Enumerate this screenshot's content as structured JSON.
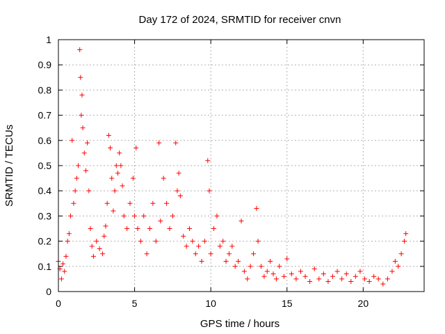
{
  "chart_data": {
    "type": "scatter",
    "title": "Day 172 of 2024, SRMTID for receiver cnvn",
    "xlabel": "GPS time / hours",
    "ylabel": "SRMTID / TECUs",
    "xlim": [
      0,
      24
    ],
    "ylim": [
      0,
      1
    ],
    "xticks": [
      0,
      5,
      10,
      15,
      20
    ],
    "xtick_labels": [
      "0",
      "5",
      "10",
      "15",
      "20"
    ],
    "yticks": [
      0,
      0.1,
      0.2,
      0.3,
      0.4,
      0.5,
      0.6,
      0.7,
      0.8,
      0.9,
      1
    ],
    "ytick_labels": [
      "0",
      "0.1",
      "0.2",
      "0.3",
      "0.4",
      "0.5",
      "0.6",
      "0.7",
      "0.8",
      "0.9",
      "1"
    ],
    "grid": true,
    "marker": "+",
    "series": [
      {
        "name": "SRMTID",
        "color": "#ff0000",
        "points": [
          [
            0.0,
            0.12
          ],
          [
            0.1,
            0.09
          ],
          [
            0.2,
            0.05
          ],
          [
            0.3,
            0.11
          ],
          [
            0.4,
            0.08
          ],
          [
            0.5,
            0.14
          ],
          [
            0.6,
            0.2
          ],
          [
            0.7,
            0.23
          ],
          [
            0.8,
            0.3
          ],
          [
            0.9,
            0.6
          ],
          [
            1.0,
            0.35
          ],
          [
            1.1,
            0.4
          ],
          [
            1.2,
            0.45
          ],
          [
            1.3,
            0.5
          ],
          [
            1.4,
            0.96
          ],
          [
            1.45,
            0.85
          ],
          [
            1.5,
            0.7
          ],
          [
            1.55,
            0.78
          ],
          [
            1.6,
            0.65
          ],
          [
            1.7,
            0.55
          ],
          [
            1.8,
            0.48
          ],
          [
            1.9,
            0.59
          ],
          [
            2.0,
            0.4
          ],
          [
            2.1,
            0.25
          ],
          [
            2.2,
            0.18
          ],
          [
            2.3,
            0.14
          ],
          [
            2.5,
            0.2
          ],
          [
            2.7,
            0.17
          ],
          [
            2.9,
            0.15
          ],
          [
            3.0,
            0.22
          ],
          [
            3.1,
            0.26
          ],
          [
            3.2,
            0.35
          ],
          [
            3.3,
            0.62
          ],
          [
            3.4,
            0.57
          ],
          [
            3.5,
            0.45
          ],
          [
            3.6,
            0.32
          ],
          [
            3.7,
            0.4
          ],
          [
            3.8,
            0.5
          ],
          [
            3.9,
            0.47
          ],
          [
            4.0,
            0.55
          ],
          [
            4.1,
            0.5
          ],
          [
            4.2,
            0.42
          ],
          [
            4.3,
            0.3
          ],
          [
            4.5,
            0.25
          ],
          [
            4.7,
            0.35
          ],
          [
            4.9,
            0.45
          ],
          [
            5.0,
            0.3
          ],
          [
            5.1,
            0.57
          ],
          [
            5.2,
            0.25
          ],
          [
            5.4,
            0.2
          ],
          [
            5.6,
            0.3
          ],
          [
            5.8,
            0.15
          ],
          [
            6.0,
            0.25
          ],
          [
            6.2,
            0.35
          ],
          [
            6.4,
            0.2
          ],
          [
            6.6,
            0.59
          ],
          [
            6.7,
            0.28
          ],
          [
            6.9,
            0.45
          ],
          [
            7.1,
            0.35
          ],
          [
            7.3,
            0.25
          ],
          [
            7.5,
            0.3
          ],
          [
            7.7,
            0.59
          ],
          [
            7.8,
            0.4
          ],
          [
            7.9,
            0.47
          ],
          [
            8.0,
            0.38
          ],
          [
            8.2,
            0.22
          ],
          [
            8.4,
            0.18
          ],
          [
            8.6,
            0.25
          ],
          [
            8.8,
            0.2
          ],
          [
            9.0,
            0.15
          ],
          [
            9.2,
            0.18
          ],
          [
            9.4,
            0.12
          ],
          [
            9.6,
            0.2
          ],
          [
            9.8,
            0.52
          ],
          [
            9.9,
            0.4
          ],
          [
            10.0,
            0.15
          ],
          [
            10.2,
            0.25
          ],
          [
            10.4,
            0.3
          ],
          [
            10.6,
            0.18
          ],
          [
            10.8,
            0.2
          ],
          [
            11.0,
            0.12
          ],
          [
            11.2,
            0.15
          ],
          [
            11.4,
            0.18
          ],
          [
            11.6,
            0.1
          ],
          [
            11.8,
            0.12
          ],
          [
            12.0,
            0.28
          ],
          [
            12.2,
            0.08
          ],
          [
            12.4,
            0.05
          ],
          [
            12.6,
            0.1
          ],
          [
            12.8,
            0.15
          ],
          [
            13.0,
            0.33
          ],
          [
            13.1,
            0.2
          ],
          [
            13.3,
            0.1
          ],
          [
            13.5,
            0.06
          ],
          [
            13.7,
            0.08
          ],
          [
            13.9,
            0.12
          ],
          [
            14.1,
            0.07
          ],
          [
            14.3,
            0.05
          ],
          [
            14.5,
            0.1
          ],
          [
            14.8,
            0.06
          ],
          [
            15.0,
            0.13
          ],
          [
            15.3,
            0.07
          ],
          [
            15.6,
            0.05
          ],
          [
            15.9,
            0.08
          ],
          [
            16.2,
            0.06
          ],
          [
            16.5,
            0.04
          ],
          [
            16.8,
            0.09
          ],
          [
            17.1,
            0.05
          ],
          [
            17.4,
            0.07
          ],
          [
            17.7,
            0.04
          ],
          [
            18.0,
            0.06
          ],
          [
            18.3,
            0.08
          ],
          [
            18.6,
            0.05
          ],
          [
            18.9,
            0.07
          ],
          [
            19.2,
            0.04
          ],
          [
            19.5,
            0.06
          ],
          [
            19.8,
            0.08
          ],
          [
            20.1,
            0.05
          ],
          [
            20.4,
            0.04
          ],
          [
            20.7,
            0.06
          ],
          [
            21.0,
            0.05
          ],
          [
            21.3,
            0.03
          ],
          [
            21.6,
            0.05
          ],
          [
            21.9,
            0.08
          ],
          [
            22.1,
            0.12
          ],
          [
            22.3,
            0.1
          ],
          [
            22.5,
            0.15
          ],
          [
            22.7,
            0.2
          ],
          [
            22.8,
            0.23
          ]
        ]
      }
    ]
  }
}
